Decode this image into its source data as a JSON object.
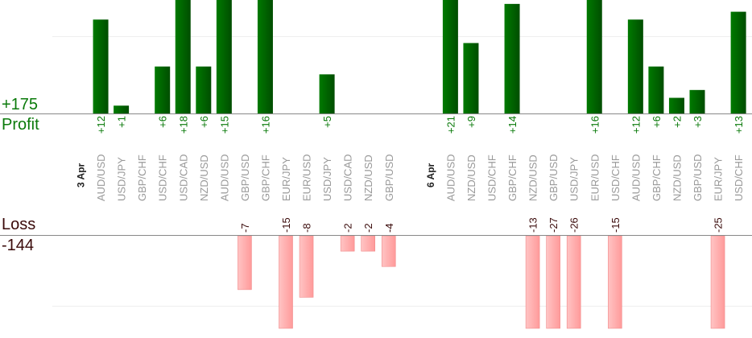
{
  "chart_data": {
    "type": "bar",
    "title": "",
    "profit_total": "+175",
    "profit_label": "Profit",
    "loss_label": "Loss",
    "loss_total": "-144",
    "profit_scale_max": 14.5,
    "loss_scale_max": 13.4,
    "colors": {
      "profit": "#006600",
      "loss": "#ffb0b0",
      "profit_text": "#0a7a0a",
      "loss_text": "#3a0a0a",
      "pair_text": "#999999"
    },
    "columns": [
      {
        "date": "3 Apr"
      },
      {
        "pair": "AUD/USD",
        "value": 12
      },
      {
        "pair": "USD/JPY",
        "value": 1
      },
      {
        "pair": "GBP/CHF",
        "value": null
      },
      {
        "pair": "USD/CHF",
        "value": 6
      },
      {
        "pair": "USD/CAD",
        "value": 18
      },
      {
        "pair": "NZD/USD",
        "value": 6
      },
      {
        "pair": "AUD/USD",
        "value": 15
      },
      {
        "pair": "GBP/USD",
        "value": -7
      },
      {
        "pair": "GBP/CHF",
        "value": 16
      },
      {
        "pair": "EUR/JPY",
        "value": -15
      },
      {
        "pair": "EUR/USD",
        "value": -8
      },
      {
        "pair": "USD/JPY",
        "value": 5
      },
      {
        "pair": "USD/CAD",
        "value": -2
      },
      {
        "pair": "NZD/USD",
        "value": -2
      },
      {
        "pair": "GBP/USD",
        "value": -4
      },
      {
        "gap": true
      },
      {
        "date": "6 Apr"
      },
      {
        "pair": "AUD/USD",
        "value": 21
      },
      {
        "pair": "NZD/USD",
        "value": 9
      },
      {
        "pair": "USD/CHF",
        "value": null
      },
      {
        "pair": "GBP/CHF",
        "value": 14
      },
      {
        "pair": "NZD/USD",
        "value": -13
      },
      {
        "pair": "GBP/USD",
        "value": -27
      },
      {
        "pair": "USD/JPY",
        "value": -26
      },
      {
        "pair": "EUR/USD",
        "value": 16
      },
      {
        "pair": "USD/CHF",
        "value": -15
      },
      {
        "pair": "AUD/USD",
        "value": 12
      },
      {
        "pair": "GBP/CHF",
        "value": 6
      },
      {
        "pair": "NZD/USD",
        "value": 2
      },
      {
        "pair": "GBP/USD",
        "value": 3
      },
      {
        "pair": "EUR/JPY",
        "value": -25
      },
      {
        "pair": "USD/CHF",
        "value": 13
      }
    ]
  }
}
